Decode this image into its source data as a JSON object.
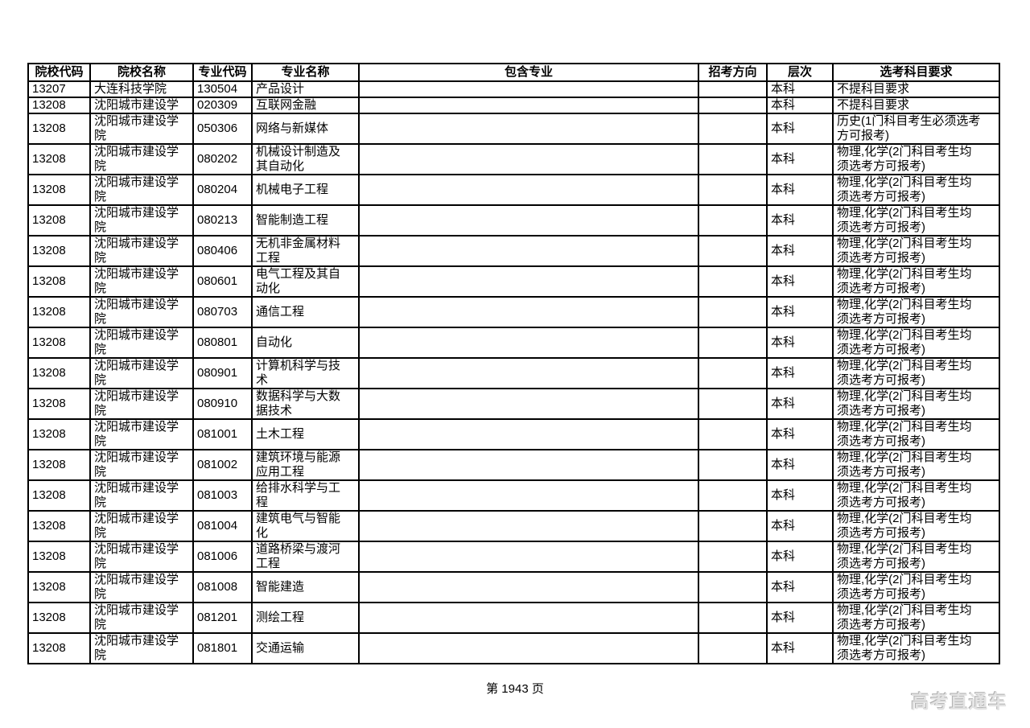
{
  "page": {
    "footer_page_label": "第 1943 页",
    "watermark_text": "高考直通车"
  },
  "colors": {
    "border": "#000000",
    "text": "#000000",
    "background": "#ffffff",
    "watermark": "#e2e2e2"
  },
  "table": {
    "headers": [
      "院校代码",
      "院校名称",
      "专业代码",
      "专业名称",
      "包含专业",
      "招考方向",
      "层次",
      "选考科目要求"
    ],
    "column_keys": [
      "school_code",
      "school_name",
      "major_code",
      "major_name",
      "included_majors",
      "direction",
      "level",
      "requirements"
    ],
    "rows": [
      {
        "school_code": "13207",
        "school_name": "大连科技学院",
        "major_code": "130504",
        "major_name": "产品设计",
        "included_majors": "",
        "direction": "",
        "level": "本科",
        "requirements": "不提科目要求"
      },
      {
        "school_code": "13208",
        "school_name": "沈阳城市建设学",
        "major_code": "020309",
        "major_name": "互联网金融",
        "included_majors": "",
        "direction": "",
        "level": "本科",
        "requirements": "不提科目要求"
      },
      {
        "school_code": "13208",
        "school_name": "沈阳城市建设学\n院",
        "major_code": "050306",
        "major_name": "网络与新媒体",
        "included_majors": "",
        "direction": "",
        "level": "本科",
        "requirements": "历史(1门科目考生必须选考\n方可报考)"
      },
      {
        "school_code": "13208",
        "school_name": "沈阳城市建设学\n院",
        "major_code": "080202",
        "major_name": "机械设计制造及\n其自动化",
        "included_majors": "",
        "direction": "",
        "level": "本科",
        "requirements": "物理,化学(2门科目考生均\n须选考方可报考)"
      },
      {
        "school_code": "13208",
        "school_name": "沈阳城市建设学\n院",
        "major_code": "080204",
        "major_name": "机械电子工程",
        "included_majors": "",
        "direction": "",
        "level": "本科",
        "requirements": "物理,化学(2门科目考生均\n须选考方可报考)"
      },
      {
        "school_code": "13208",
        "school_name": "沈阳城市建设学\n院",
        "major_code": "080213",
        "major_name": "智能制造工程",
        "included_majors": "",
        "direction": "",
        "level": "本科",
        "requirements": "物理,化学(2门科目考生均\n须选考方可报考)"
      },
      {
        "school_code": "13208",
        "school_name": "沈阳城市建设学\n院",
        "major_code": "080406",
        "major_name": "无机非金属材料\n工程",
        "included_majors": "",
        "direction": "",
        "level": "本科",
        "requirements": "物理,化学(2门科目考生均\n须选考方可报考)"
      },
      {
        "school_code": "13208",
        "school_name": "沈阳城市建设学\n院",
        "major_code": "080601",
        "major_name": "电气工程及其自\n动化",
        "included_majors": "",
        "direction": "",
        "level": "本科",
        "requirements": "物理,化学(2门科目考生均\n须选考方可报考)"
      },
      {
        "school_code": "13208",
        "school_name": "沈阳城市建设学\n院",
        "major_code": "080703",
        "major_name": "通信工程",
        "included_majors": "",
        "direction": "",
        "level": "本科",
        "requirements": "物理,化学(2门科目考生均\n须选考方可报考)"
      },
      {
        "school_code": "13208",
        "school_name": "沈阳城市建设学\n院",
        "major_code": "080801",
        "major_name": "自动化",
        "included_majors": "",
        "direction": "",
        "level": "本科",
        "requirements": "物理,化学(2门科目考生均\n须选考方可报考)"
      },
      {
        "school_code": "13208",
        "school_name": "沈阳城市建设学\n院",
        "major_code": "080901",
        "major_name": "计算机科学与技\n术",
        "included_majors": "",
        "direction": "",
        "level": "本科",
        "requirements": "物理,化学(2门科目考生均\n须选考方可报考)"
      },
      {
        "school_code": "13208",
        "school_name": "沈阳城市建设学\n院",
        "major_code": "080910",
        "major_name": "数据科学与大数\n据技术",
        "included_majors": "",
        "direction": "",
        "level": "本科",
        "requirements": "物理,化学(2门科目考生均\n须选考方可报考)"
      },
      {
        "school_code": "13208",
        "school_name": "沈阳城市建设学\n院",
        "major_code": "081001",
        "major_name": "土木工程",
        "included_majors": "",
        "direction": "",
        "level": "本科",
        "requirements": "物理,化学(2门科目考生均\n须选考方可报考)"
      },
      {
        "school_code": "13208",
        "school_name": "沈阳城市建设学\n院",
        "major_code": "081002",
        "major_name": "建筑环境与能源\n应用工程",
        "included_majors": "",
        "direction": "",
        "level": "本科",
        "requirements": "物理,化学(2门科目考生均\n须选考方可报考)"
      },
      {
        "school_code": "13208",
        "school_name": "沈阳城市建设学\n院",
        "major_code": "081003",
        "major_name": "给排水科学与工\n程",
        "included_majors": "",
        "direction": "",
        "level": "本科",
        "requirements": "物理,化学(2门科目考生均\n须选考方可报考)"
      },
      {
        "school_code": "13208",
        "school_name": "沈阳城市建设学\n院",
        "major_code": "081004",
        "major_name": "建筑电气与智能\n化",
        "included_majors": "",
        "direction": "",
        "level": "本科",
        "requirements": "物理,化学(2门科目考生均\n须选考方可报考)"
      },
      {
        "school_code": "13208",
        "school_name": "沈阳城市建设学\n院",
        "major_code": "081006",
        "major_name": "道路桥梁与渡河\n工程",
        "included_majors": "",
        "direction": "",
        "level": "本科",
        "requirements": "物理,化学(2门科目考生均\n须选考方可报考)"
      },
      {
        "school_code": "13208",
        "school_name": "沈阳城市建设学\n院",
        "major_code": "081008",
        "major_name": "智能建造",
        "included_majors": "",
        "direction": "",
        "level": "本科",
        "requirements": "物理,化学(2门科目考生均\n须选考方可报考)"
      },
      {
        "school_code": "13208",
        "school_name": "沈阳城市建设学\n院",
        "major_code": "081201",
        "major_name": "测绘工程",
        "included_majors": "",
        "direction": "",
        "level": "本科",
        "requirements": "物理,化学(2门科目考生均\n须选考方可报考)"
      },
      {
        "school_code": "13208",
        "school_name": "沈阳城市建设学\n院",
        "major_code": "081801",
        "major_name": "交通运输",
        "included_majors": "",
        "direction": "",
        "level": "本科",
        "requirements": "物理,化学(2门科目考生均\n须选考方可报考)"
      }
    ]
  }
}
